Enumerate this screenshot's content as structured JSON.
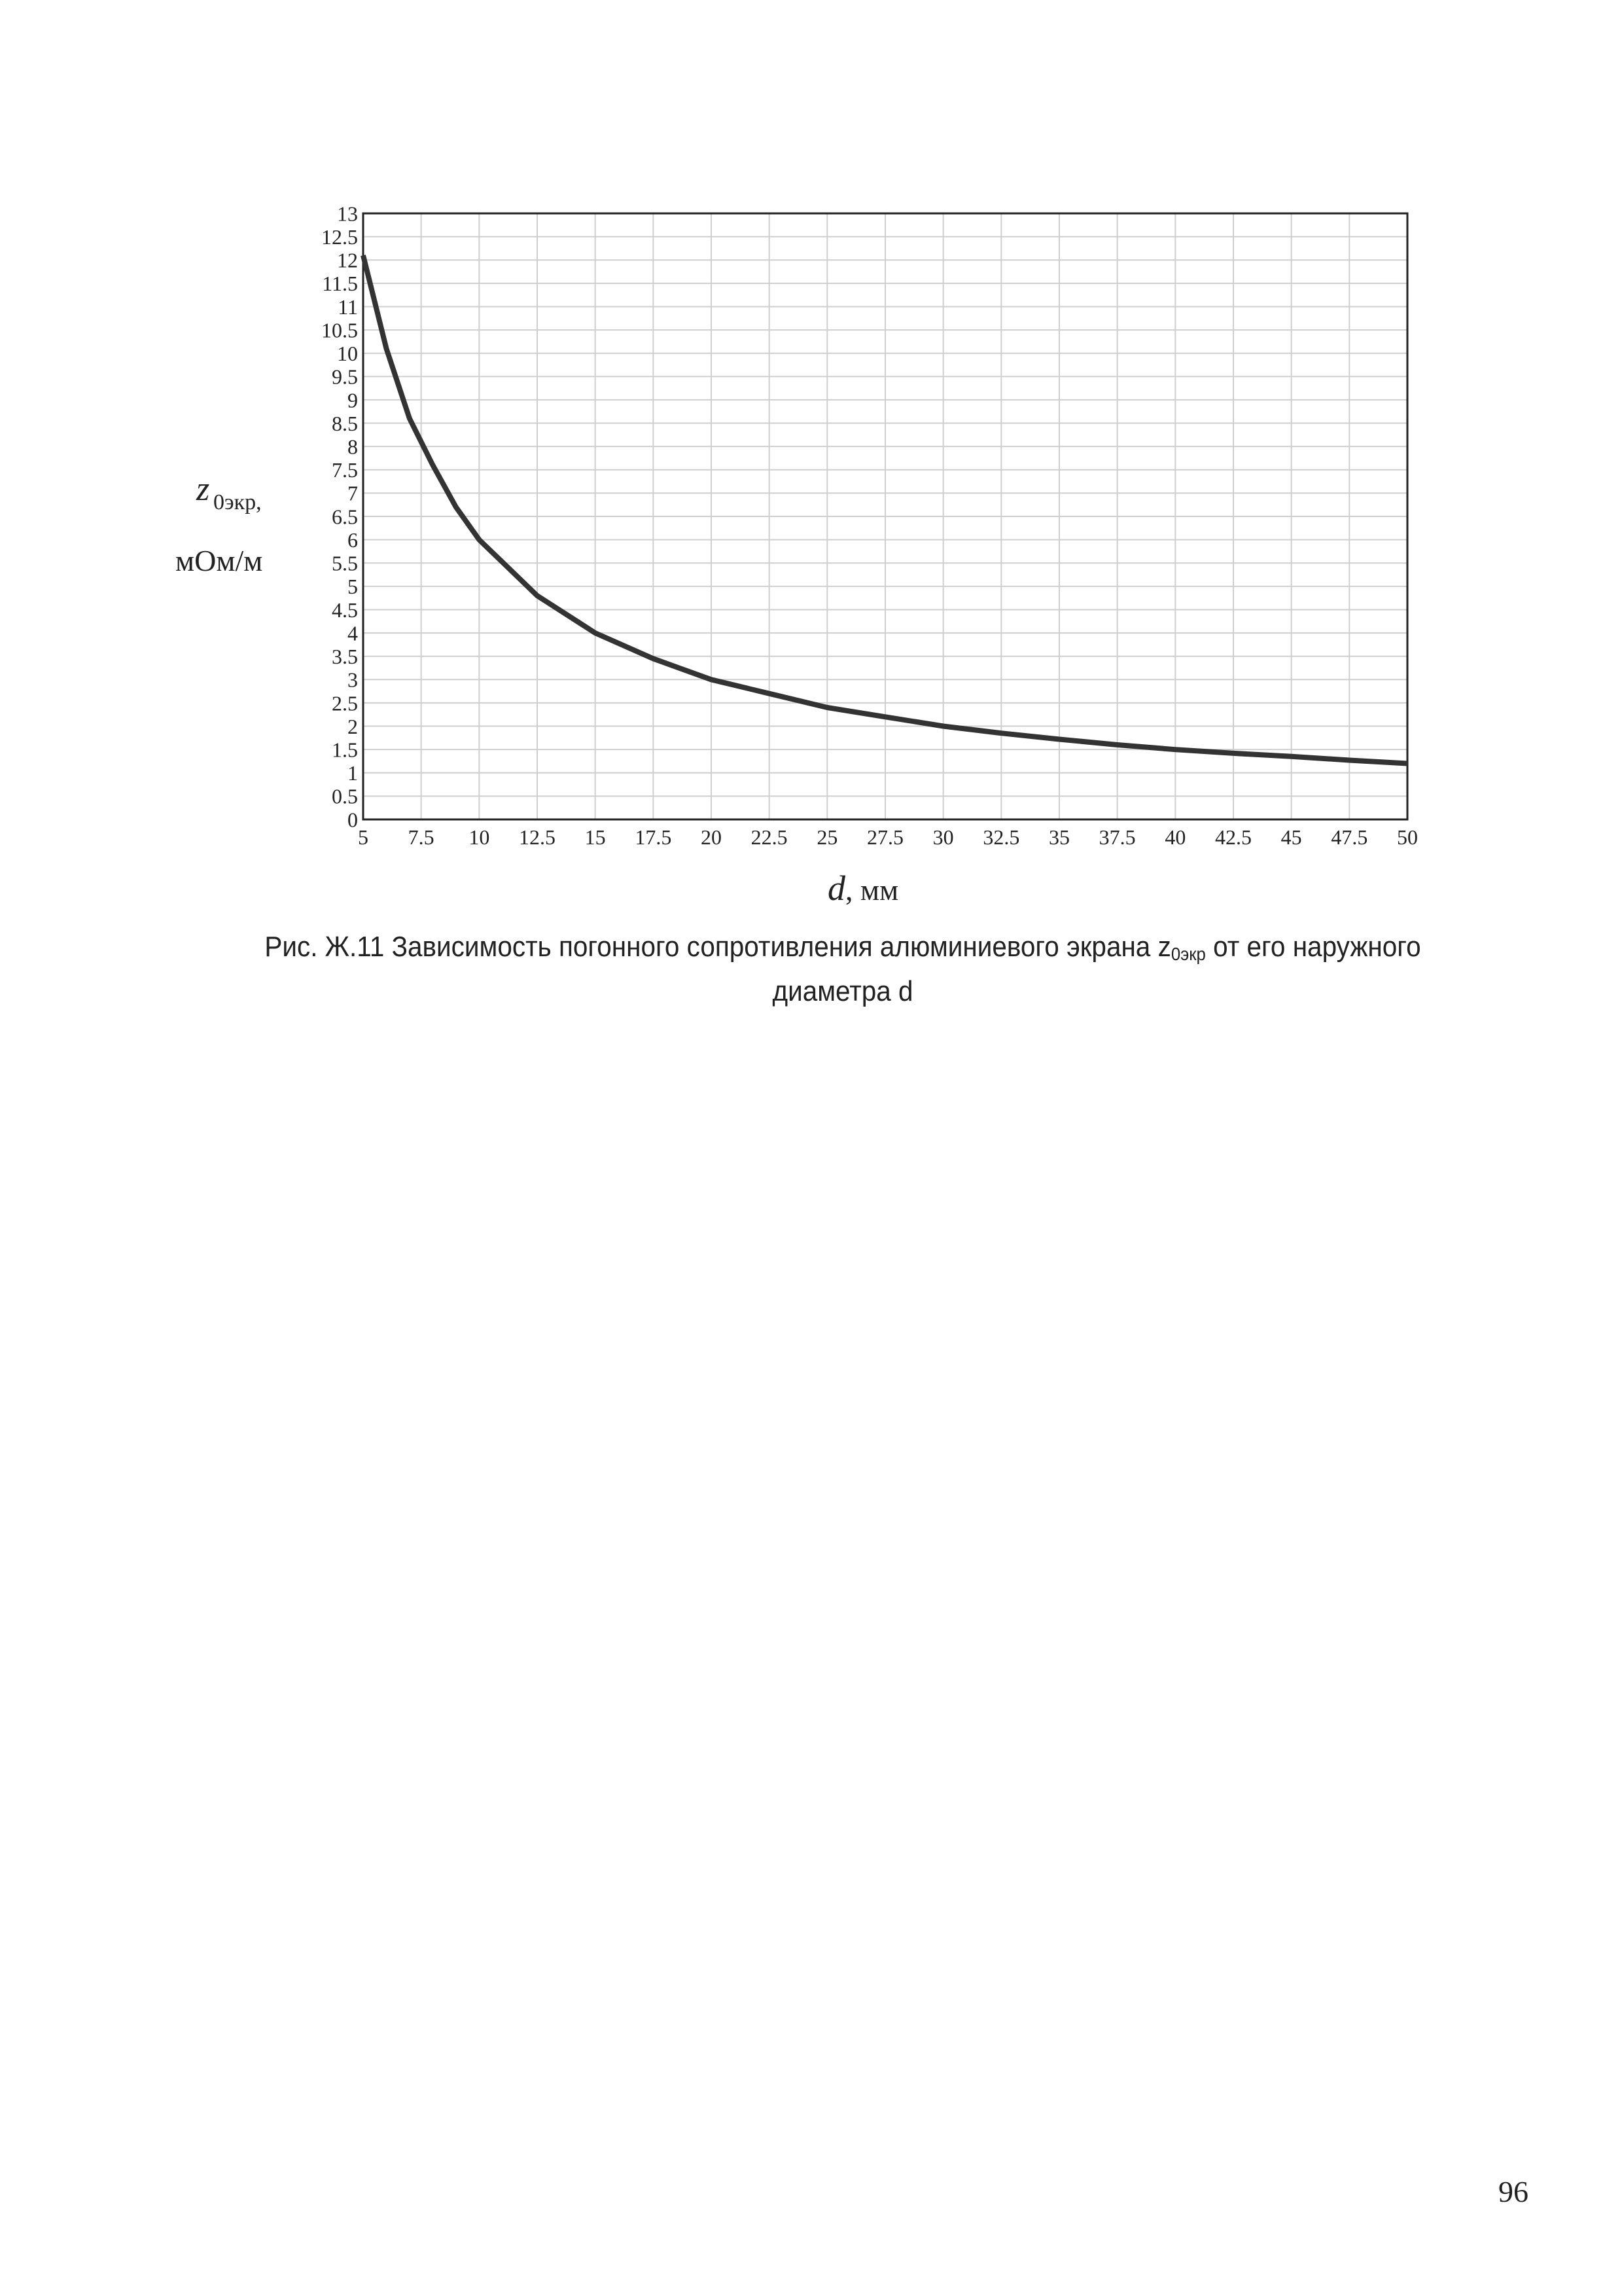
{
  "chart_data": {
    "type": "line",
    "x": [
      5,
      6,
      7,
      8,
      9,
      10,
      12.5,
      15,
      17.5,
      20,
      22.5,
      25,
      27.5,
      30,
      32.5,
      35,
      37.5,
      40,
      42.5,
      45,
      47.5,
      50
    ],
    "values": [
      12.1,
      10.1,
      8.6,
      7.6,
      6.7,
      6.0,
      4.8,
      4.0,
      3.45,
      3.0,
      2.7,
      2.4,
      2.2,
      2.0,
      1.85,
      1.72,
      1.6,
      1.5,
      1.42,
      1.35,
      1.27,
      1.2
    ],
    "color": "#333333",
    "xlim": [
      5,
      50
    ],
    "ylim": [
      0,
      13
    ],
    "xticks": [
      5,
      7.5,
      10,
      12.5,
      15,
      17.5,
      20,
      22.5,
      25,
      27.5,
      30,
      32.5,
      35,
      37.5,
      40,
      42.5,
      45,
      47.5,
      50
    ],
    "yticks": [
      0,
      0.5,
      1,
      1.5,
      2,
      2.5,
      3,
      3.5,
      4,
      4.5,
      5,
      5.5,
      6,
      6.5,
      7,
      7.5,
      8,
      8.5,
      9,
      9.5,
      10,
      10.5,
      11,
      11.5,
      12,
      12.5,
      13
    ],
    "grid": true,
    "y_label": {
      "symbol": "z",
      "subscript": "0экр,",
      "unit": "мОм/м"
    },
    "x_label": {
      "symbol": "d",
      "unit": ", мм"
    }
  },
  "caption": {
    "text": "Рис. Ж.11 Зависимость погонного сопротивления алюминиевого экрана z",
    "subscript": "0экр",
    "text_after": " от его наружного диаметра d"
  },
  "page_number": "96"
}
